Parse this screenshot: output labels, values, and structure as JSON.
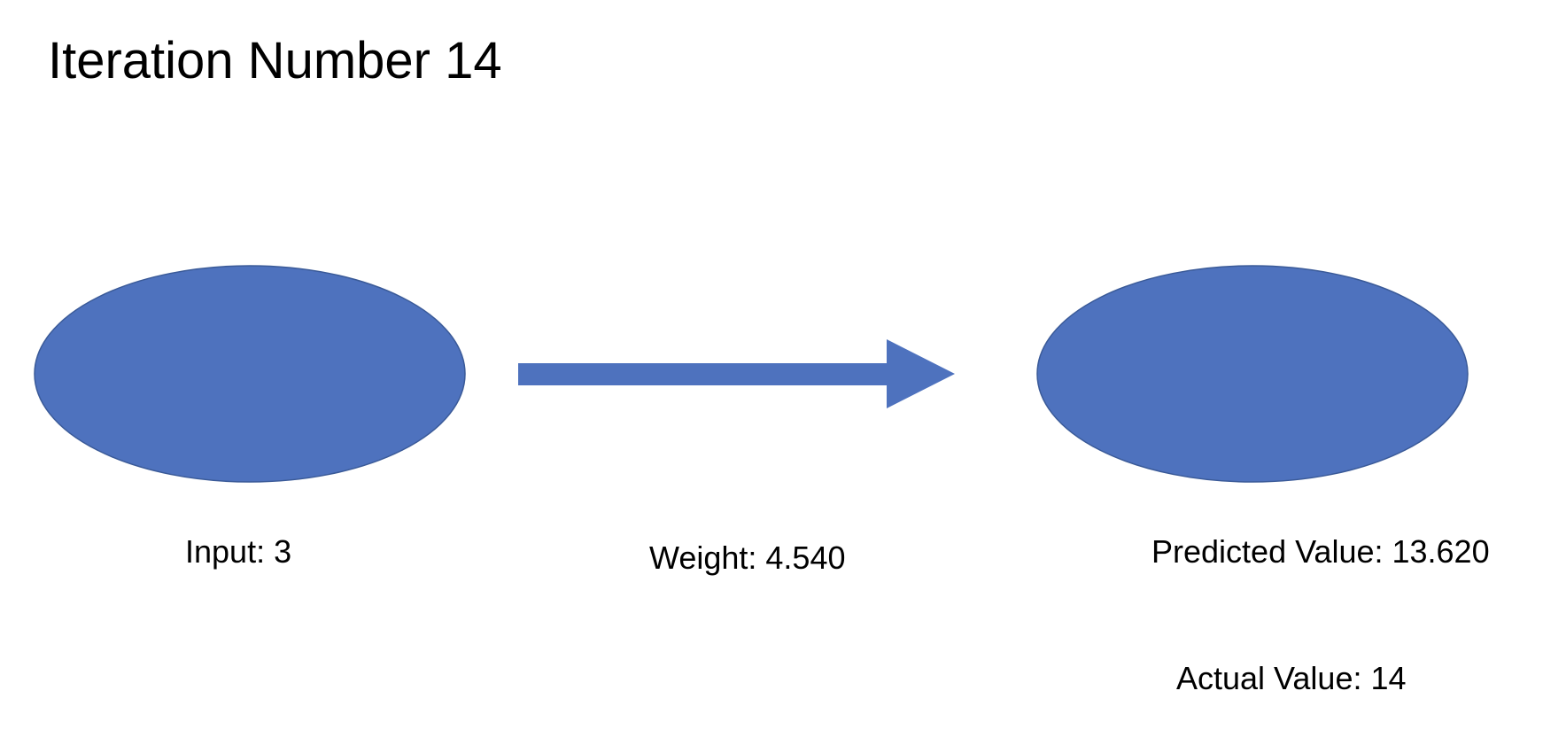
{
  "title": "Iteration Number 14",
  "nodes": {
    "input": {
      "label": "Input: 3"
    },
    "output": {
      "label": "Predicted Value: 13.620"
    }
  },
  "edge": {
    "label": "Weight: 4.540"
  },
  "actual": {
    "label": "Actual Value: 14"
  },
  "colors": {
    "node_fill": "#4e72be",
    "node_stroke": "#3a5a98",
    "arrow_fill": "#4e72be",
    "text": "#000000"
  }
}
